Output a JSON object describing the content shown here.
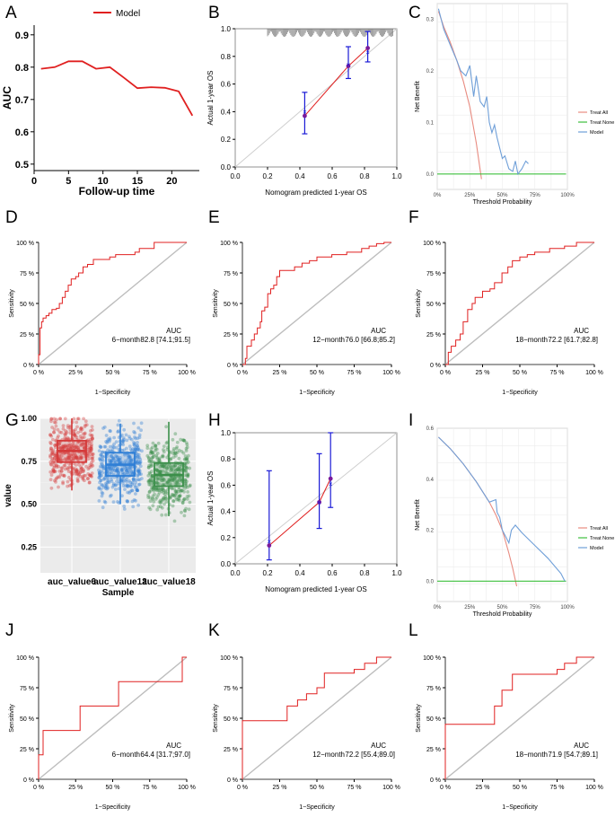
{
  "chart_data": [
    {
      "panel": "A",
      "type": "line",
      "xlabel": "Follow-up time",
      "ylabel": "AUC",
      "xticks": [
        0,
        5,
        10,
        15,
        20
      ],
      "yticks": [
        0.5,
        0.6,
        0.7,
        0.8,
        0.9
      ],
      "xlim": [
        0,
        24
      ],
      "ylim": [
        0.48,
        0.93
      ],
      "legend_position": "top",
      "series": [
        {
          "name": "Model",
          "color": "#e02020",
          "x": [
            1,
            3,
            5,
            7,
            9,
            11,
            13,
            15,
            17,
            19,
            21,
            23
          ],
          "y": [
            0.795,
            0.8,
            0.818,
            0.818,
            0.795,
            0.8,
            0.768,
            0.735,
            0.738,
            0.736,
            0.725,
            0.65
          ]
        }
      ]
    },
    {
      "panel": "B",
      "type": "calibration",
      "xlabel": "Nomogram predicted 1-year OS",
      "ylabel": "Actual 1-year OS",
      "xticks": [
        "0.0",
        "0.2",
        "0.4",
        "0.6",
        "0.8",
        "1.0"
      ],
      "yticks": [
        "0.0",
        "0.2",
        "0.4",
        "0.6",
        "0.8",
        "1.0"
      ],
      "xlim": [
        0,
        1
      ],
      "ylim": [
        0,
        1
      ],
      "points": [
        {
          "x": 0.43,
          "y": 0.37,
          "lo": 0.24,
          "hi": 0.54,
          "bc": 0.4
        },
        {
          "x": 0.7,
          "y": 0.73,
          "lo": 0.64,
          "hi": 0.87,
          "bc": 0.74
        },
        {
          "x": 0.82,
          "y": 0.86,
          "lo": 0.76,
          "hi": 0.98,
          "bc": 0.83
        }
      ]
    },
    {
      "panel": "C",
      "type": "line",
      "xlabel": "Threshold Probability",
      "ylabel": "Net Benefit",
      "xticks": [
        "0%",
        "25%",
        "50%",
        "75%",
        "100%"
      ],
      "yticks": [
        "0.0",
        "0.1",
        "0.2",
        "0.3"
      ],
      "xlim": [
        0,
        1
      ],
      "ylim": [
        -0.03,
        0.33
      ],
      "legend": [
        "Treat All",
        "Treat None",
        "Model"
      ],
      "legend_position": "right",
      "series": [
        {
          "name": "Treat All",
          "color": "#e88b80",
          "x": [
            0.01,
            0.05,
            0.1,
            0.15,
            0.2,
            0.25,
            0.3,
            0.34
          ],
          "y": [
            0.315,
            0.285,
            0.255,
            0.22,
            0.18,
            0.13,
            0.06,
            -0.01
          ]
        },
        {
          "name": "Treat None",
          "color": "#3dbf3d",
          "x": [
            0.0,
            0.99
          ],
          "y": [
            0.0,
            0.0
          ]
        },
        {
          "name": "Model",
          "color": "#6f9fd8",
          "x": [
            0.01,
            0.05,
            0.1,
            0.15,
            0.18,
            0.22,
            0.25,
            0.28,
            0.3,
            0.33,
            0.36,
            0.38,
            0.4,
            0.42,
            0.44,
            0.46,
            0.48,
            0.5,
            0.52,
            0.55,
            0.58,
            0.6,
            0.62,
            0.65,
            0.68,
            0.7
          ],
          "y": [
            0.32,
            0.28,
            0.25,
            0.22,
            0.2,
            0.19,
            0.21,
            0.15,
            0.19,
            0.14,
            0.13,
            0.15,
            0.1,
            0.08,
            0.095,
            0.07,
            0.05,
            0.03,
            0.035,
            0.01,
            0.005,
            0.025,
            0.0,
            0.01,
            0.025,
            0.02
          ]
        }
      ]
    },
    {
      "panel": "D",
      "type": "line",
      "xlabel": "1−Specificity",
      "ylabel": "Sensitivity",
      "xticks": [
        "0 %",
        "25 %",
        "50 %",
        "75 %",
        "100 %"
      ],
      "yticks": [
        "0 %",
        "25 %",
        "50 %",
        "75 %",
        "100 %"
      ],
      "xlim": [
        0,
        1
      ],
      "ylim": [
        0,
        1
      ],
      "annotation": {
        "header": "AUC",
        "label": "6−month",
        "value": "82.8 [74.1;91.5]"
      },
      "roc": [
        [
          0,
          0
        ],
        [
          0,
          0.08
        ],
        [
          0.01,
          0.2
        ],
        [
          0.01,
          0.3
        ],
        [
          0.02,
          0.35
        ],
        [
          0.03,
          0.38
        ],
        [
          0.05,
          0.4
        ],
        [
          0.07,
          0.42
        ],
        [
          0.09,
          0.45
        ],
        [
          0.12,
          0.46
        ],
        [
          0.14,
          0.5
        ],
        [
          0.16,
          0.55
        ],
        [
          0.18,
          0.6
        ],
        [
          0.2,
          0.65
        ],
        [
          0.22,
          0.7
        ],
        [
          0.25,
          0.72
        ],
        [
          0.27,
          0.75
        ],
        [
          0.3,
          0.8
        ],
        [
          0.33,
          0.82
        ],
        [
          0.37,
          0.86
        ],
        [
          0.45,
          0.86
        ],
        [
          0.48,
          0.88
        ],
        [
          0.52,
          0.9
        ],
        [
          0.65,
          0.92
        ],
        [
          0.68,
          0.95
        ],
        [
          0.75,
          0.95
        ],
        [
          0.78,
          1.0
        ],
        [
          1,
          1
        ]
      ]
    },
    {
      "panel": "E",
      "type": "line",
      "xlabel": "1−Specificity",
      "ylabel": "Sensitivity",
      "xticks": [
        "0 %",
        "25 %",
        "50 %",
        "75 %",
        "100 %"
      ],
      "yticks": [
        "0 %",
        "25 %",
        "50 %",
        "75 %",
        "100 %"
      ],
      "xlim": [
        0,
        1
      ],
      "ylim": [
        0,
        1
      ],
      "annotation": {
        "header": "AUC",
        "label": "12−month",
        "value": "76.0 [66.8;85.2]"
      },
      "roc": [
        [
          0,
          0
        ],
        [
          0.02,
          0.05
        ],
        [
          0.03,
          0.15
        ],
        [
          0.06,
          0.2
        ],
        [
          0.08,
          0.25
        ],
        [
          0.1,
          0.3
        ],
        [
          0.12,
          0.35
        ],
        [
          0.13,
          0.44
        ],
        [
          0.15,
          0.47
        ],
        [
          0.17,
          0.58
        ],
        [
          0.19,
          0.62
        ],
        [
          0.21,
          0.65
        ],
        [
          0.23,
          0.72
        ],
        [
          0.25,
          0.77
        ],
        [
          0.3,
          0.77
        ],
        [
          0.35,
          0.8
        ],
        [
          0.4,
          0.83
        ],
        [
          0.45,
          0.85
        ],
        [
          0.5,
          0.88
        ],
        [
          0.6,
          0.9
        ],
        [
          0.7,
          0.92
        ],
        [
          0.8,
          0.95
        ],
        [
          0.85,
          0.97
        ],
        [
          0.9,
          0.99
        ],
        [
          0.95,
          1.0
        ],
        [
          1,
          1
        ]
      ]
    },
    {
      "panel": "F",
      "type": "line",
      "xlabel": "1−Specificity",
      "ylabel": "Sensitivity",
      "xticks": [
        "0 %",
        "25 %",
        "50 %",
        "75 %",
        "100 %"
      ],
      "yticks": [
        "0 %",
        "25 %",
        "50 %",
        "75 %",
        "100 %"
      ],
      "xlim": [
        0,
        1
      ],
      "ylim": [
        0,
        1
      ],
      "annotation": {
        "header": "AUC",
        "label": "18−month",
        "value": "72.2 [61.7;82.8]"
      },
      "roc": [
        [
          0,
          0
        ],
        [
          0.02,
          0.1
        ],
        [
          0.04,
          0.15
        ],
        [
          0.07,
          0.2
        ],
        [
          0.1,
          0.25
        ],
        [
          0.12,
          0.35
        ],
        [
          0.15,
          0.45
        ],
        [
          0.18,
          0.5
        ],
        [
          0.2,
          0.55
        ],
        [
          0.25,
          0.6
        ],
        [
          0.3,
          0.62
        ],
        [
          0.33,
          0.67
        ],
        [
          0.38,
          0.75
        ],
        [
          0.42,
          0.8
        ],
        [
          0.45,
          0.85
        ],
        [
          0.5,
          0.88
        ],
        [
          0.55,
          0.9
        ],
        [
          0.6,
          0.92
        ],
        [
          0.7,
          0.95
        ],
        [
          0.8,
          0.97
        ],
        [
          0.88,
          1.0
        ],
        [
          1,
          1
        ]
      ]
    },
    {
      "panel": "G",
      "type": "box",
      "xlabel": "Sample",
      "ylabel": "value",
      "categories": [
        "auc_value6",
        "auc_value12",
        "auc_value18"
      ],
      "yticks": [
        "0.25",
        "0.50",
        "0.75",
        "1.00"
      ],
      "ylim": [
        0.1,
        1.0
      ],
      "colors": [
        "#d43a3a",
        "#2f7fd6",
        "#3b8f4a"
      ],
      "boxes": [
        {
          "q1": 0.745,
          "median": 0.81,
          "q3": 0.87,
          "lo": 0.58,
          "hi": 1.0
        },
        {
          "q1": 0.665,
          "median": 0.73,
          "q3": 0.8,
          "lo": 0.5,
          "hi": 0.97
        },
        {
          "q1": 0.605,
          "median": 0.67,
          "q3": 0.74,
          "lo": 0.43,
          "hi": 0.98
        }
      ]
    },
    {
      "panel": "H",
      "type": "calibration",
      "xlabel": "Nomogram predicted 1-year OS",
      "ylabel": "Actual 1-year OS",
      "xticks": [
        "0.0",
        "0.2",
        "0.4",
        "0.6",
        "0.8",
        "1.0"
      ],
      "yticks": [
        "0.0",
        "0.2",
        "0.4",
        "0.6",
        "0.8",
        "1.0"
      ],
      "xlim": [
        0,
        1
      ],
      "ylim": [
        0,
        1
      ],
      "points": [
        {
          "x": 0.21,
          "y": 0.14,
          "lo": 0.03,
          "hi": 0.71,
          "bc": 0.17
        },
        {
          "x": 0.52,
          "y": 0.47,
          "lo": 0.27,
          "hi": 0.84,
          "bc": 0.47
        },
        {
          "x": 0.59,
          "y": 0.65,
          "lo": 0.43,
          "hi": 1.0,
          "bc": 0.61
        }
      ]
    },
    {
      "panel": "I",
      "type": "line",
      "xlabel": "Threshold Probability",
      "ylabel": "Net Benefit",
      "xticks": [
        "0%",
        "25%",
        "50%",
        "75%",
        "100%"
      ],
      "yticks": [
        "0.0",
        "0.2",
        "0.4",
        "0.6"
      ],
      "xlim": [
        0,
        1
      ],
      "ylim": [
        -0.08,
        0.6
      ],
      "legend": [
        "Treat All",
        "Treat None",
        "Model"
      ],
      "legend_position": "right",
      "series": [
        {
          "name": "Treat All",
          "color": "#e88b80",
          "x": [
            0.01,
            0.1,
            0.2,
            0.3,
            0.4,
            0.45,
            0.5,
            0.55,
            0.58,
            0.61
          ],
          "y": [
            0.565,
            0.52,
            0.46,
            0.39,
            0.31,
            0.26,
            0.2,
            0.11,
            0.05,
            -0.02
          ]
        },
        {
          "name": "Treat None",
          "color": "#3dbf3d",
          "x": [
            0.0,
            0.99
          ],
          "y": [
            0.0,
            0.0
          ]
        },
        {
          "name": "Model",
          "color": "#6f9fd8",
          "x": [
            0.01,
            0.1,
            0.2,
            0.3,
            0.4,
            0.45,
            0.46,
            0.48,
            0.5,
            0.53,
            0.55,
            0.57,
            0.6,
            0.65,
            0.75,
            0.85,
            0.95,
            0.98
          ],
          "y": [
            0.565,
            0.52,
            0.46,
            0.39,
            0.31,
            0.32,
            0.27,
            0.25,
            0.2,
            0.17,
            0.15,
            0.2,
            0.22,
            0.19,
            0.14,
            0.09,
            0.03,
            0.0
          ]
        }
      ]
    },
    {
      "panel": "J",
      "type": "line",
      "xlabel": "1−Specificity",
      "ylabel": "Sensitivity",
      "xticks": [
        "0 %",
        "25 %",
        "50 %",
        "75 %",
        "100 %"
      ],
      "yticks": [
        "0 %",
        "25 %",
        "50 %",
        "75 %",
        "100 %"
      ],
      "xlim": [
        0,
        1
      ],
      "ylim": [
        0,
        1
      ],
      "annotation": {
        "header": "AUC",
        "label": "6−month",
        "value": "64.4 [31.7;97.0]"
      },
      "roc": [
        [
          0,
          0
        ],
        [
          0,
          0.2
        ],
        [
          0.03,
          0.2
        ],
        [
          0.03,
          0.4
        ],
        [
          0.28,
          0.4
        ],
        [
          0.28,
          0.6
        ],
        [
          0.54,
          0.6
        ],
        [
          0.54,
          0.8
        ],
        [
          0.97,
          0.8
        ],
        [
          0.97,
          1.0
        ],
        [
          1,
          1
        ]
      ]
    },
    {
      "panel": "K",
      "type": "line",
      "xlabel": "1−Specificity",
      "ylabel": "Sensitivity",
      "xticks": [
        "0 %",
        "25 %",
        "50 %",
        "75 %",
        "100 %"
      ],
      "yticks": [
        "0 %",
        "25 %",
        "50 %",
        "75 %",
        "100 %"
      ],
      "xlim": [
        0,
        1
      ],
      "ylim": [
        0,
        1
      ],
      "annotation": {
        "header": "AUC",
        "label": "12−month",
        "value": "72.2 [55.4;89.0]"
      },
      "roc": [
        [
          0,
          0
        ],
        [
          0,
          0.48
        ],
        [
          0.3,
          0.48
        ],
        [
          0.3,
          0.6
        ],
        [
          0.37,
          0.6
        ],
        [
          0.37,
          0.65
        ],
        [
          0.43,
          0.65
        ],
        [
          0.43,
          0.7
        ],
        [
          0.5,
          0.7
        ],
        [
          0.5,
          0.75
        ],
        [
          0.55,
          0.75
        ],
        [
          0.55,
          0.87
        ],
        [
          0.75,
          0.87
        ],
        [
          0.75,
          0.9
        ],
        [
          0.82,
          0.9
        ],
        [
          0.82,
          0.95
        ],
        [
          0.9,
          0.95
        ],
        [
          0.9,
          1.0
        ],
        [
          1,
          1
        ]
      ]
    },
    {
      "panel": "L",
      "type": "line",
      "xlabel": "1−Specificity",
      "ylabel": "Sensitivity",
      "xticks": [
        "0 %",
        "25 %",
        "50 %",
        "75 %",
        "100 %"
      ],
      "yticks": [
        "0 %",
        "25 %",
        "50 %",
        "75 %",
        "100 %"
      ],
      "xlim": [
        0,
        1
      ],
      "ylim": [
        0,
        1
      ],
      "annotation": {
        "header": "AUC",
        "label": "18−month",
        "value": "71.9 [54.7;89.1]"
      },
      "roc": [
        [
          0,
          0
        ],
        [
          0,
          0.45
        ],
        [
          0.33,
          0.45
        ],
        [
          0.33,
          0.6
        ],
        [
          0.38,
          0.6
        ],
        [
          0.38,
          0.73
        ],
        [
          0.45,
          0.73
        ],
        [
          0.45,
          0.86
        ],
        [
          0.75,
          0.86
        ],
        [
          0.75,
          0.9
        ],
        [
          0.8,
          0.9
        ],
        [
          0.8,
          0.95
        ],
        [
          0.88,
          0.95
        ],
        [
          0.88,
          1.0
        ],
        [
          1,
          1
        ]
      ]
    }
  ]
}
